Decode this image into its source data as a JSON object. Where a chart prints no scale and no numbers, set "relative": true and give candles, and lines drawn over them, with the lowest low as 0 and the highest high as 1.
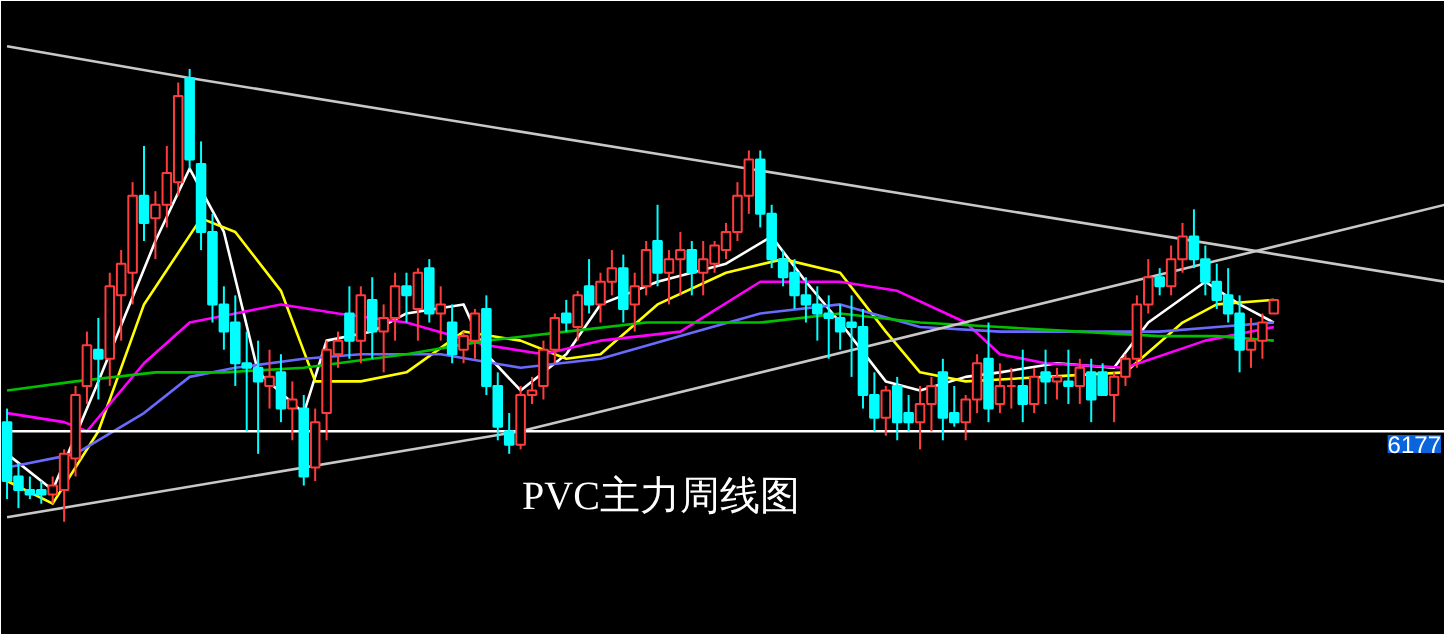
{
  "chart_data": {
    "type": "candlestick",
    "title": "PVC主力周线图",
    "relative": true,
    "categories": [
      null,
      null,
      null,
      null,
      null,
      null,
      null,
      null,
      null,
      null,
      null,
      null,
      null,
      null,
      null,
      null,
      null,
      null,
      null,
      null,
      null,
      null,
      null,
      null,
      null,
      null,
      null,
      null,
      null,
      null,
      null,
      null,
      null,
      null,
      null,
      null,
      null,
      null,
      null,
      null,
      null,
      null,
      null,
      null,
      null,
      null,
      null,
      null,
      null,
      null,
      null,
      null,
      null,
      null,
      null,
      null,
      null,
      null,
      null,
      null,
      null,
      null,
      null,
      null,
      null,
      null,
      null,
      null,
      null,
      null,
      null,
      null,
      null,
      null,
      null,
      null,
      null,
      null,
      null,
      null,
      null,
      null,
      null,
      null,
      null,
      null,
      null,
      null,
      null,
      null,
      null,
      null,
      null,
      null,
      null,
      null,
      null,
      null,
      null,
      null,
      null,
      null,
      null,
      null,
      null,
      null,
      null,
      null,
      null,
      null,
      null,
      null,
      null,
      null,
      null,
      null,
      null,
      null,
      null,
      null,
      null,
      null,
      null,
      null,
      null,
      null,
      null
    ],
    "ohlc": [
      [
        0.22,
        0.25,
        0.05,
        0.09
      ],
      [
        0.1,
        0.13,
        0.03,
        0.07
      ],
      [
        0.07,
        0.1,
        0.05,
        0.06
      ],
      [
        0.07,
        0.09,
        0.04,
        0.06
      ],
      [
        0.06,
        0.1,
        0.04,
        0.08
      ],
      [
        0.07,
        0.16,
        0.0,
        0.15
      ],
      [
        0.14,
        0.3,
        0.1,
        0.28
      ],
      [
        0.3,
        0.42,
        0.26,
        0.39
      ],
      [
        0.38,
        0.45,
        0.27,
        0.36
      ],
      [
        0.36,
        0.55,
        0.3,
        0.52
      ],
      [
        0.5,
        0.6,
        0.4,
        0.57
      ],
      [
        0.55,
        0.75,
        0.48,
        0.72
      ],
      [
        0.72,
        0.83,
        0.62,
        0.66
      ],
      [
        0.67,
        0.73,
        0.58,
        0.7
      ],
      [
        0.7,
        0.83,
        0.65,
        0.77
      ],
      [
        0.75,
        0.97,
        0.72,
        0.94
      ],
      [
        0.98,
        1.0,
        0.78,
        0.8
      ],
      [
        0.79,
        0.84,
        0.6,
        0.64
      ],
      [
        0.64,
        0.68,
        0.44,
        0.48
      ],
      [
        0.48,
        0.52,
        0.38,
        0.42
      ],
      [
        0.44,
        0.5,
        0.3,
        0.35
      ],
      [
        0.35,
        0.42,
        0.2,
        0.34
      ],
      [
        0.34,
        0.4,
        0.15,
        0.31
      ],
      [
        0.3,
        0.38,
        0.25,
        0.32
      ],
      [
        0.33,
        0.37,
        0.22,
        0.25
      ],
      [
        0.25,
        0.31,
        0.18,
        0.27
      ],
      [
        0.25,
        0.28,
        0.08,
        0.1
      ],
      [
        0.12,
        0.25,
        0.09,
        0.22
      ],
      [
        0.24,
        0.4,
        0.18,
        0.38
      ],
      [
        0.37,
        0.42,
        0.34,
        0.4
      ],
      [
        0.46,
        0.52,
        0.36,
        0.4
      ],
      [
        0.4,
        0.52,
        0.35,
        0.5
      ],
      [
        0.49,
        0.54,
        0.36,
        0.42
      ],
      [
        0.42,
        0.48,
        0.33,
        0.45
      ],
      [
        0.45,
        0.55,
        0.4,
        0.52
      ],
      [
        0.52,
        0.55,
        0.44,
        0.5
      ],
      [
        0.47,
        0.56,
        0.4,
        0.55
      ],
      [
        0.56,
        0.58,
        0.44,
        0.46
      ],
      [
        0.46,
        0.52,
        0.4,
        0.48
      ],
      [
        0.44,
        0.48,
        0.35,
        0.37
      ],
      [
        0.38,
        0.42,
        0.35,
        0.41
      ],
      [
        0.4,
        0.47,
        0.36,
        0.46
      ],
      [
        0.47,
        0.5,
        0.28,
        0.3
      ],
      [
        0.3,
        0.33,
        0.18,
        0.21
      ],
      [
        0.2,
        0.24,
        0.15,
        0.17
      ],
      [
        0.17,
        0.3,
        0.16,
        0.28
      ],
      [
        0.28,
        0.32,
        0.26,
        0.29
      ],
      [
        0.3,
        0.4,
        0.27,
        0.38
      ],
      [
        0.38,
        0.46,
        0.35,
        0.45
      ],
      [
        0.46,
        0.49,
        0.42,
        0.44
      ],
      [
        0.43,
        0.51,
        0.4,
        0.5
      ],
      [
        0.52,
        0.58,
        0.46,
        0.48
      ],
      [
        0.48,
        0.55,
        0.44,
        0.53
      ],
      [
        0.53,
        0.6,
        0.5,
        0.56
      ],
      [
        0.56,
        0.59,
        0.44,
        0.47
      ],
      [
        0.48,
        0.55,
        0.42,
        0.52
      ],
      [
        0.52,
        0.62,
        0.5,
        0.6
      ],
      [
        0.62,
        0.7,
        0.52,
        0.55
      ],
      [
        0.55,
        0.6,
        0.48,
        0.58
      ],
      [
        0.58,
        0.64,
        0.5,
        0.6
      ],
      [
        0.6,
        0.62,
        0.5,
        0.55
      ],
      [
        0.55,
        0.62,
        0.5,
        0.58
      ],
      [
        0.57,
        0.62,
        0.55,
        0.61
      ],
      [
        0.6,
        0.66,
        0.58,
        0.64
      ],
      [
        0.64,
        0.75,
        0.62,
        0.72
      ],
      [
        0.72,
        0.82,
        0.68,
        0.8
      ],
      [
        0.8,
        0.82,
        0.65,
        0.68
      ],
      [
        0.68,
        0.7,
        0.56,
        0.58
      ],
      [
        0.58,
        0.6,
        0.52,
        0.54
      ],
      [
        0.55,
        0.58,
        0.47,
        0.5
      ],
      [
        0.5,
        0.54,
        0.44,
        0.48
      ],
      [
        0.48,
        0.52,
        0.4,
        0.46
      ],
      [
        0.46,
        0.5,
        0.36,
        0.45
      ],
      [
        0.45,
        0.48,
        0.38,
        0.42
      ],
      [
        0.44,
        0.5,
        0.32,
        0.43
      ],
      [
        0.43,
        0.47,
        0.25,
        0.28
      ],
      [
        0.28,
        0.33,
        0.2,
        0.23
      ],
      [
        0.23,
        0.3,
        0.19,
        0.29
      ],
      [
        0.3,
        0.32,
        0.18,
        0.22
      ],
      [
        0.24,
        0.28,
        0.2,
        0.22
      ],
      [
        0.22,
        0.3,
        0.16,
        0.26
      ],
      [
        0.26,
        0.32,
        0.2,
        0.3
      ],
      [
        0.33,
        0.36,
        0.18,
        0.23
      ],
      [
        0.24,
        0.3,
        0.21,
        0.22
      ],
      [
        0.22,
        0.28,
        0.18,
        0.27
      ],
      [
        0.27,
        0.37,
        0.24,
        0.35
      ],
      [
        0.36,
        0.44,
        0.22,
        0.25
      ],
      [
        0.26,
        0.35,
        0.24,
        0.3
      ],
      [
        0.3,
        0.34,
        0.25,
        0.3
      ],
      [
        0.3,
        0.38,
        0.22,
        0.26
      ],
      [
        0.26,
        0.34,
        0.24,
        0.32
      ],
      [
        0.33,
        0.38,
        0.26,
        0.31
      ],
      [
        0.31,
        0.34,
        0.27,
        0.32
      ],
      [
        0.31,
        0.38,
        0.26,
        0.3
      ],
      [
        0.3,
        0.36,
        0.26,
        0.34
      ],
      [
        0.33,
        0.36,
        0.22,
        0.27
      ],
      [
        0.33,
        0.35,
        0.28,
        0.28
      ],
      [
        0.28,
        0.33,
        0.22,
        0.32
      ],
      [
        0.32,
        0.37,
        0.3,
        0.36
      ],
      [
        0.36,
        0.5,
        0.34,
        0.48
      ],
      [
        0.48,
        0.58,
        0.46,
        0.54
      ],
      [
        0.54,
        0.56,
        0.5,
        0.52
      ],
      [
        0.52,
        0.61,
        0.5,
        0.58
      ],
      [
        0.58,
        0.66,
        0.55,
        0.63
      ],
      [
        0.63,
        0.69,
        0.56,
        0.58
      ],
      [
        0.58,
        0.61,
        0.5,
        0.53
      ],
      [
        0.53,
        0.57,
        0.47,
        0.49
      ],
      [
        0.5,
        0.56,
        0.44,
        0.46
      ],
      [
        0.46,
        0.5,
        0.33,
        0.38
      ],
      [
        0.38,
        0.45,
        0.34,
        0.4
      ],
      [
        0.4,
        0.46,
        0.36,
        0.44
      ],
      [
        0.46,
        0.49,
        0.46,
        0.49
      ],
      null,
      null,
      null,
      null,
      null,
      null,
      null,
      null,
      null,
      null,
      null,
      null,
      null,
      null,
      null
    ],
    "series": [
      {
        "type": "line",
        "color": "#ffffff",
        "values": [
          0.15,
          null,
          null,
          null,
          0.07,
          null,
          null,
          null,
          0.31,
          null,
          null,
          null,
          null,
          0.62,
          null,
          null,
          0.78,
          null,
          null,
          0.64,
          null,
          null,
          0.33,
          null,
          null,
          null,
          0.24,
          null,
          0.4,
          null,
          null,
          null,
          0.42,
          null,
          null,
          0.46,
          null,
          null,
          null,
          null,
          0.48,
          null,
          0.37,
          null,
          null,
          0.29,
          null,
          null,
          null,
          0.37,
          null,
          null,
          0.48,
          null,
          null,
          null,
          null,
          0.53,
          null,
          null,
          null,
          null,
          null,
          0.57,
          null,
          null,
          null,
          0.63,
          null,
          null,
          0.53,
          null,
          null,
          0.44,
          null,
          null,
          null,
          0.31,
          null,
          null,
          0.29,
          null,
          null,
          null,
          0.32,
          null,
          null,
          0.33,
          null,
          null,
          null,
          null,
          0.35,
          null,
          null,
          null,
          null,
          0.34,
          null,
          null,
          0.44,
          null,
          null,
          null,
          null,
          0.53,
          null,
          null,
          0.48,
          null,
          null,
          0.44,
          null,
          null,
          null,
          null,
          null,
          null,
          null,
          null,
          null,
          null,
          null,
          null,
          null,
          null,
          null
        ]
      },
      {
        "type": "line",
        "color": "#ffff00",
        "values": [
          0.09,
          null,
          null,
          null,
          0.04,
          null,
          null,
          null,
          0.2,
          null,
          null,
          null,
          0.48,
          null,
          null,
          null,
          null,
          0.67,
          null,
          null,
          0.64,
          null,
          null,
          null,
          0.51,
          null,
          null,
          0.31,
          null,
          null,
          null,
          0.31,
          null,
          null,
          null,
          0.33,
          null,
          null,
          null,
          null,
          0.42,
          null,
          null,
          null,
          null,
          0.4,
          null,
          null,
          null,
          0.36,
          null,
          null,
          0.37,
          null,
          null,
          null,
          null,
          0.48,
          null,
          null,
          null,
          null,
          null,
          0.55,
          null,
          null,
          null,
          null,
          0.58,
          null,
          null,
          null,
          null,
          0.55,
          null,
          null,
          null,
          0.42,
          null,
          null,
          0.33,
          null,
          null,
          null,
          0.31,
          null,
          null,
          null,
          null,
          null,
          null,
          0.32,
          null,
          null,
          null,
          null,
          null,
          null,
          0.33,
          null,
          null,
          null,
          null,
          0.44,
          null,
          null,
          0.48,
          null,
          null,
          null,
          null,
          0.49,
          null,
          null,
          null,
          null,
          null,
          null,
          null,
          null,
          null,
          null,
          null,
          null,
          null,
          null,
          null
        ]
      },
      {
        "type": "line",
        "color": "#ff00ff",
        "values": [
          0.24,
          null,
          null,
          null,
          null,
          0.22,
          null,
          0.2,
          null,
          null,
          null,
          null,
          0.35,
          null,
          null,
          null,
          0.44,
          null,
          null,
          null,
          0.46,
          null,
          null,
          null,
          0.48,
          null,
          null,
          null,
          null,
          0.46,
          null,
          null,
          null,
          null,
          null,
          0.44,
          null,
          null,
          null,
          null,
          null,
          null,
          0.39,
          null,
          null,
          null,
          null,
          0.37,
          null,
          null,
          null,
          null,
          0.4,
          null,
          null,
          null,
          null,
          null,
          null,
          0.42,
          null,
          null,
          null,
          null,
          null,
          null,
          0.53,
          null,
          null,
          null,
          null,
          null,
          null,
          0.53,
          null,
          null,
          null,
          null,
          0.51,
          null,
          null,
          null,
          null,
          null,
          0.44,
          null,
          null,
          0.37,
          null,
          null,
          null,
          0.35,
          null,
          null,
          null,
          null,
          null,
          null,
          0.34,
          null,
          null,
          null,
          null,
          null,
          null,
          0.4,
          null,
          null,
          null,
          null,
          null,
          0.43,
          null,
          null,
          null,
          null,
          null,
          null,
          null,
          null,
          null,
          null,
          null,
          null,
          null,
          null,
          null
        ]
      },
      {
        "type": "line",
        "color": "#6a6aff",
        "values": [
          0.12,
          null,
          null,
          null,
          null,
          null,
          0.15,
          null,
          null,
          null,
          null,
          null,
          0.24,
          null,
          null,
          null,
          0.32,
          null,
          null,
          null,
          0.34,
          null,
          null,
          null,
          null,
          null,
          0.36,
          null,
          null,
          null,
          null,
          0.37,
          null,
          null,
          null,
          null,
          null,
          null,
          0.37,
          null,
          null,
          null,
          null,
          null,
          null,
          0.34,
          null,
          null,
          null,
          null,
          null,
          null,
          0.36,
          null,
          null,
          null,
          null,
          null,
          null,
          0.41,
          null,
          null,
          null,
          null,
          null,
          null,
          0.46,
          null,
          null,
          null,
          null,
          null,
          null,
          0.48,
          null,
          null,
          null,
          null,
          null,
          null,
          0.43,
          null,
          null,
          null,
          null,
          null,
          null,
          0.42,
          null,
          null,
          null,
          null,
          null,
          null,
          0.42,
          null,
          null,
          null,
          null,
          null,
          null,
          0.42,
          null,
          null,
          null,
          null,
          0.43,
          null,
          null,
          null,
          null,
          0.44,
          null,
          null,
          null,
          null,
          null,
          null,
          null,
          null,
          null,
          null,
          null,
          null,
          null,
          null,
          null
        ]
      },
      {
        "type": "line",
        "color": "#00c000",
        "values": [
          0.29,
          null,
          null,
          null,
          null,
          null,
          0.31,
          null,
          null,
          null,
          null,
          null,
          null,
          0.33,
          null,
          null,
          null,
          null,
          null,
          0.33,
          null,
          null,
          null,
          null,
          null,
          null,
          0.34,
          null,
          null,
          null,
          null,
          null,
          null,
          null,
          null,
          0.37,
          null,
          null,
          null,
          null,
          null,
          null,
          0.4,
          null,
          null,
          null,
          null,
          null,
          null,
          0.42,
          null,
          null,
          null,
          null,
          null,
          null,
          0.44,
          null,
          null,
          null,
          null,
          null,
          null,
          null,
          null,
          null,
          0.44,
          null,
          null,
          null,
          null,
          null,
          null,
          0.46,
          null,
          null,
          null,
          null,
          null,
          null,
          0.44,
          null,
          null,
          null,
          null,
          null,
          null,
          0.43,
          null,
          null,
          null,
          null,
          null,
          null,
          0.42,
          null,
          null,
          null,
          null,
          null,
          null,
          0.41,
          null,
          null,
          null,
          null,
          0.41,
          null,
          null,
          null,
          null,
          0.4,
          null,
          null,
          null,
          null,
          null,
          null,
          null,
          null,
          null,
          null,
          null,
          null,
          null,
          null,
          null
        ]
      },
      {
        "type": "line",
        "color": "#c8c8c8",
        "values": [
          1.05,
          null,
          null,
          null,
          null,
          null,
          null,
          null,
          null,
          null,
          null,
          null,
          null,
          null,
          null,
          null,
          0.98,
          null,
          null,
          null,
          null,
          null,
          null,
          null,
          null,
          null,
          null,
          null,
          null,
          null,
          null,
          null,
          null,
          null,
          null,
          null,
          null,
          null,
          null,
          null,
          null,
          null,
          null,
          null,
          null,
          null,
          null,
          null,
          null,
          null,
          null,
          null,
          null,
          null,
          null,
          null,
          null,
          null,
          null,
          null,
          null,
          null,
          null,
          null,
          null,
          null,
          null,
          null,
          null,
          null,
          null,
          null,
          null,
          null,
          null,
          null,
          null,
          null,
          null,
          null,
          null,
          null,
          null,
          null,
          null,
          null,
          null,
          null,
          null,
          null,
          null,
          null,
          null,
          null,
          null,
          null,
          null,
          null,
          null,
          null,
          null,
          null,
          null,
          null,
          null,
          null,
          null,
          null,
          null,
          null,
          null,
          null,
          null,
          null,
          null,
          null,
          null,
          null,
          null,
          null,
          null,
          null,
          null,
          null,
          null,
          null,
          0.53
        ]
      },
      {
        "type": "line",
        "color": "#c8c8c8",
        "values": [
          0.01,
          null,
          null,
          null,
          null,
          null,
          null,
          null,
          null,
          null,
          null,
          null,
          null,
          null,
          null,
          null,
          null,
          null,
          null,
          null,
          null,
          null,
          null,
          null,
          null,
          null,
          null,
          null,
          null,
          null,
          null,
          null,
          null,
          null,
          null,
          null,
          null,
          null,
          null,
          null,
          null,
          null,
          null,
          null,
          null,
          0.2,
          null,
          null,
          null,
          null,
          null,
          null,
          null,
          null,
          null,
          null,
          null,
          null,
          null,
          null,
          null,
          null,
          null,
          null,
          null,
          null,
          null,
          null,
          null,
          null,
          null,
          null,
          null,
          null,
          null,
          null,
          null,
          null,
          null,
          null,
          null,
          null,
          null,
          null,
          null,
          null,
          null,
          null,
          null,
          null,
          null,
          null,
          null,
          null,
          null,
          null,
          null,
          null,
          null,
          null,
          null,
          null,
          null,
          null,
          null,
          null,
          null,
          null,
          null,
          null,
          null,
          null,
          null,
          null,
          null,
          null,
          null,
          null,
          null,
          null,
          null,
          null,
          null,
          null,
          null,
          null,
          0.7
        ]
      },
      {
        "type": "line",
        "color": "#ffffff",
        "values": [
          0.2,
          null,
          null,
          null,
          null,
          null,
          null,
          null,
          null,
          null,
          null,
          null,
          null,
          null,
          null,
          null,
          null,
          null,
          null,
          null,
          null,
          null,
          null,
          null,
          null,
          null,
          null,
          null,
          null,
          null,
          null,
          null,
          null,
          null,
          null,
          null,
          null,
          null,
          null,
          null,
          null,
          null,
          null,
          null,
          null,
          null,
          null,
          null,
          null,
          null,
          null,
          null,
          null,
          null,
          null,
          null,
          null,
          null,
          null,
          null,
          null,
          null,
          null,
          null,
          null,
          null,
          null,
          null,
          null,
          null,
          null,
          null,
          null,
          null,
          null,
          null,
          null,
          null,
          null,
          null,
          null,
          null,
          null,
          null,
          null,
          null,
          null,
          null,
          null,
          null,
          null,
          null,
          null,
          null,
          null,
          null,
          null,
          null,
          null,
          null,
          null,
          null,
          null,
          null,
          null,
          null,
          null,
          null,
          null,
          null,
          null,
          null,
          null,
          null,
          null,
          null,
          null,
          null,
          null,
          null,
          null,
          null,
          null,
          null,
          null,
          null,
          0.2
        ]
      }
    ],
    "annotations": [
      "6177"
    ]
  }
}
